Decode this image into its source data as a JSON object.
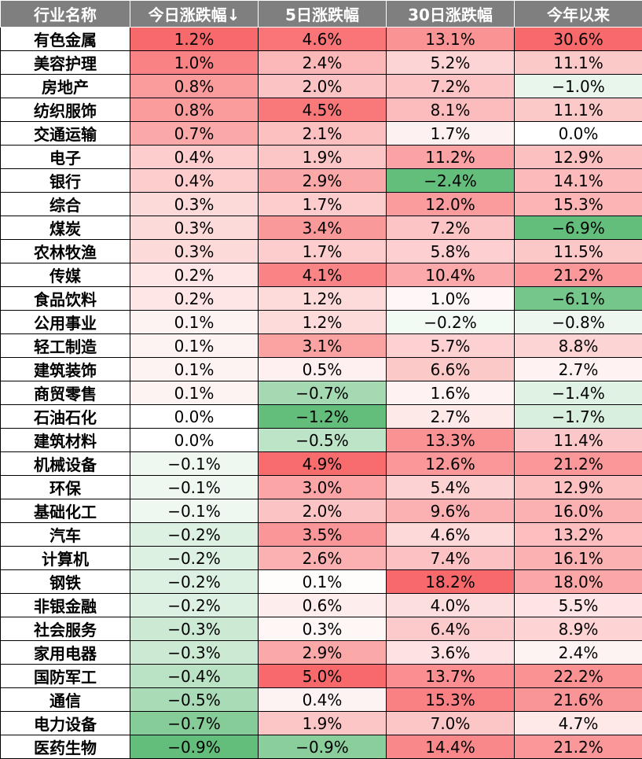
{
  "chart_data": {
    "type": "heatmap",
    "columns": [
      "行业名称",
      "今日涨跌幅↓",
      "5日涨跌幅",
      "30日涨跌幅",
      "今年以来"
    ],
    "value_columns": [
      "今日涨跌幅↓",
      "5日涨跌幅",
      "30日涨跌幅",
      "今年以来"
    ],
    "rows": [
      {
        "name": "有色金属",
        "values": [
          1.2,
          4.6,
          13.1,
          30.6
        ],
        "labels": [
          "1.2%",
          "4.6%",
          "13.1%",
          "30.6%"
        ]
      },
      {
        "name": "美容护理",
        "values": [
          1.0,
          2.4,
          5.2,
          11.1
        ],
        "labels": [
          "1.0%",
          "2.4%",
          "5.2%",
          "11.1%"
        ]
      },
      {
        "name": "房地产",
        "values": [
          0.8,
          2.0,
          7.2,
          -1.0
        ],
        "labels": [
          "0.8%",
          "2.0%",
          "7.2%",
          "−1.0%"
        ]
      },
      {
        "name": "纺织服饰",
        "values": [
          0.8,
          4.5,
          8.1,
          11.1
        ],
        "labels": [
          "0.8%",
          "4.5%",
          "8.1%",
          "11.1%"
        ]
      },
      {
        "name": "交通运输",
        "values": [
          0.7,
          2.1,
          1.7,
          0.0
        ],
        "labels": [
          "0.7%",
          "2.1%",
          "1.7%",
          "0.0%"
        ]
      },
      {
        "name": "电子",
        "values": [
          0.4,
          1.9,
          11.2,
          12.9
        ],
        "labels": [
          "0.4%",
          "1.9%",
          "11.2%",
          "12.9%"
        ]
      },
      {
        "name": "银行",
        "values": [
          0.4,
          2.9,
          -2.4,
          14.1
        ],
        "labels": [
          "0.4%",
          "2.9%",
          "−2.4%",
          "14.1%"
        ]
      },
      {
        "name": "综合",
        "values": [
          0.3,
          1.7,
          12.0,
          15.3
        ],
        "labels": [
          "0.3%",
          "1.7%",
          "12.0%",
          "15.3%"
        ]
      },
      {
        "name": "煤炭",
        "values": [
          0.3,
          3.4,
          7.2,
          -6.9
        ],
        "labels": [
          "0.3%",
          "3.4%",
          "7.2%",
          "−6.9%"
        ]
      },
      {
        "name": "农林牧渔",
        "values": [
          0.3,
          1.7,
          5.8,
          11.5
        ],
        "labels": [
          "0.3%",
          "1.7%",
          "5.8%",
          "11.5%"
        ]
      },
      {
        "name": "传媒",
        "values": [
          0.2,
          4.1,
          10.4,
          21.2
        ],
        "labels": [
          "0.2%",
          "4.1%",
          "10.4%",
          "21.2%"
        ]
      },
      {
        "name": "食品饮料",
        "values": [
          0.2,
          1.2,
          1.0,
          -6.1
        ],
        "labels": [
          "0.2%",
          "1.2%",
          "1.0%",
          "−6.1%"
        ]
      },
      {
        "name": "公用事业",
        "values": [
          0.1,
          1.2,
          -0.2,
          -0.8
        ],
        "labels": [
          "0.1%",
          "1.2%",
          "−0.2%",
          "−0.8%"
        ]
      },
      {
        "name": "轻工制造",
        "values": [
          0.1,
          3.1,
          5.7,
          8.8
        ],
        "labels": [
          "0.1%",
          "3.1%",
          "5.7%",
          "8.8%"
        ]
      },
      {
        "name": "建筑装饰",
        "values": [
          0.1,
          0.5,
          6.6,
          2.7
        ],
        "labels": [
          "0.1%",
          "0.5%",
          "6.6%",
          "2.7%"
        ]
      },
      {
        "name": "商贸零售",
        "values": [
          0.1,
          -0.7,
          1.6,
          -1.4
        ],
        "labels": [
          "0.1%",
          "−0.7%",
          "1.6%",
          "−1.4%"
        ]
      },
      {
        "name": "石油石化",
        "values": [
          0.0,
          -1.2,
          2.7,
          -1.7
        ],
        "labels": [
          "0.0%",
          "−1.2%",
          "2.7%",
          "−1.7%"
        ]
      },
      {
        "name": "建筑材料",
        "values": [
          0.0,
          -0.5,
          13.3,
          11.4
        ],
        "labels": [
          "0.0%",
          "−0.5%",
          "13.3%",
          "11.4%"
        ]
      },
      {
        "name": "机械设备",
        "values": [
          -0.1,
          4.9,
          12.6,
          21.2
        ],
        "labels": [
          "−0.1%",
          "4.9%",
          "12.6%",
          "21.2%"
        ]
      },
      {
        "name": "环保",
        "values": [
          -0.1,
          3.0,
          5.4,
          12.9
        ],
        "labels": [
          "−0.1%",
          "3.0%",
          "5.4%",
          "12.9%"
        ]
      },
      {
        "name": "基础化工",
        "values": [
          -0.1,
          2.0,
          9.6,
          16.0
        ],
        "labels": [
          "−0.1%",
          "2.0%",
          "9.6%",
          "16.0%"
        ]
      },
      {
        "name": "汽车",
        "values": [
          -0.2,
          3.5,
          4.6,
          13.2
        ],
        "labels": [
          "−0.2%",
          "3.5%",
          "4.6%",
          "13.2%"
        ]
      },
      {
        "name": "计算机",
        "values": [
          -0.2,
          2.6,
          7.4,
          16.1
        ],
        "labels": [
          "−0.2%",
          "2.6%",
          "7.4%",
          "16.1%"
        ]
      },
      {
        "name": "钢铁",
        "values": [
          -0.2,
          0.1,
          18.2,
          18.0
        ],
        "labels": [
          "−0.2%",
          "0.1%",
          "18.2%",
          "18.0%"
        ]
      },
      {
        "name": "非银金融",
        "values": [
          -0.2,
          0.6,
          4.0,
          5.5
        ],
        "labels": [
          "−0.2%",
          "0.6%",
          "4.0%",
          "5.5%"
        ]
      },
      {
        "name": "社会服务",
        "values": [
          -0.3,
          0.3,
          6.4,
          8.9
        ],
        "labels": [
          "−0.3%",
          "0.3%",
          "6.4%",
          "8.9%"
        ]
      },
      {
        "name": "家用电器",
        "values": [
          -0.3,
          2.9,
          3.6,
          2.4
        ],
        "labels": [
          "−0.3%",
          "2.9%",
          "3.6%",
          "2.4%"
        ]
      },
      {
        "name": "国防军工",
        "values": [
          -0.4,
          5.0,
          13.7,
          22.2
        ],
        "labels": [
          "−0.4%",
          "5.0%",
          "13.7%",
          "22.2%"
        ]
      },
      {
        "name": "通信",
        "values": [
          -0.5,
          0.4,
          15.3,
          21.6
        ],
        "labels": [
          "−0.5%",
          "0.4%",
          "15.3%",
          "21.6%"
        ]
      },
      {
        "name": "电力设备",
        "values": [
          -0.7,
          1.9,
          7.0,
          4.7
        ],
        "labels": [
          "−0.7%",
          "1.9%",
          "7.0%",
          "4.7%"
        ]
      },
      {
        "name": "医药生物",
        "values": [
          -0.9,
          -0.9,
          14.4,
          21.2
        ],
        "labels": [
          "−0.9%",
          "−0.9%",
          "14.4%",
          "21.2%"
        ]
      }
    ],
    "color_scale": {
      "positive": "#f8696b",
      "negative": "#63be7b",
      "neutral": "#ffffff"
    },
    "header_bg": "#7f7f7f",
    "header_color": "#ffffff"
  }
}
